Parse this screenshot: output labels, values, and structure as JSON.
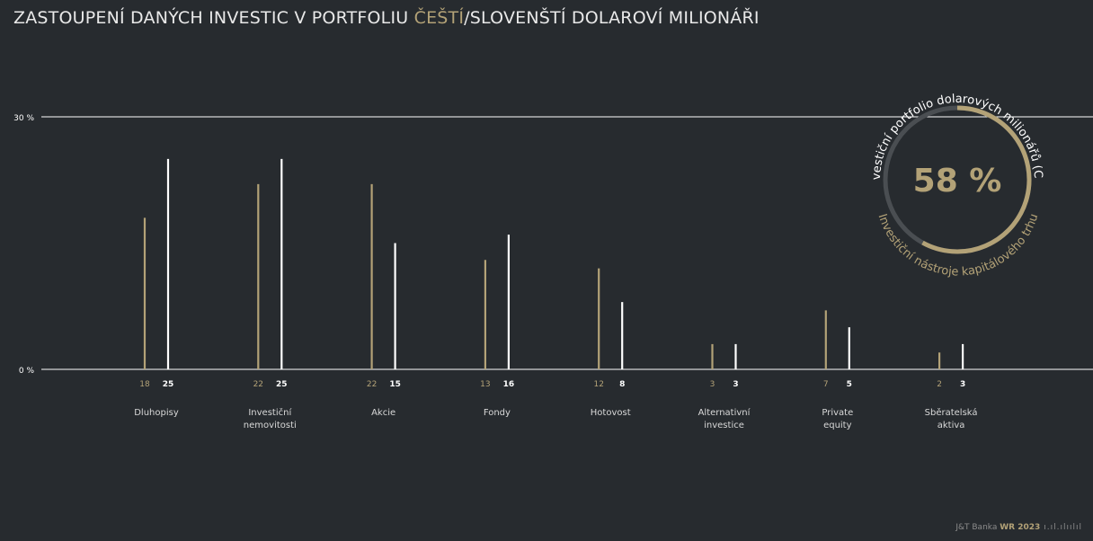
{
  "header": {
    "title_part1": "ZASTOUPENÍ DANÝCH INVESTIC V PORTFOLIU ",
    "title_accent": "ČEŠTÍ",
    "title_part2": "/SLOVENŠTÍ DOLAROVÍ MILIONÁŘI"
  },
  "colors": {
    "cz": "#b3a277",
    "sk": "#ffffff",
    "background": "#272b2f",
    "ring_track": "#4a4e52"
  },
  "chart_data": {
    "type": "bar",
    "ylim": [
      0,
      30
    ],
    "yticks": [
      {
        "value": 0,
        "label": "0 %"
      },
      {
        "value": 30,
        "label": "30 %"
      }
    ],
    "categories": [
      [
        "Dluhopisy"
      ],
      [
        "Investiční",
        "nemovitosti"
      ],
      [
        "Akcie"
      ],
      [
        "Fondy"
      ],
      [
        "Hotovost"
      ],
      [
        "Alternativní",
        "investice"
      ],
      [
        "Private",
        "equity"
      ],
      [
        "Sběratelská",
        "aktiva"
      ]
    ],
    "series": [
      {
        "color": "#b3a277",
        "values": [
          18,
          22,
          22,
          13,
          12,
          3,
          7,
          2
        ]
      },
      {
        "color": "#ffffff",
        "values": [
          25,
          25,
          15,
          16,
          8,
          3,
          5,
          3
        ]
      }
    ]
  },
  "donut": {
    "value_label": "58 %",
    "fraction": 0.58,
    "outer_text": "Investiční portfolio dolarových milionářů (CZ)",
    "inner_text": "Investiční nástroje kapitálového trhu"
  },
  "footer": {
    "brand": "J&T Banka",
    "report": "WR 2023",
    "ticks": "ı.ıl.ılıılıl"
  }
}
